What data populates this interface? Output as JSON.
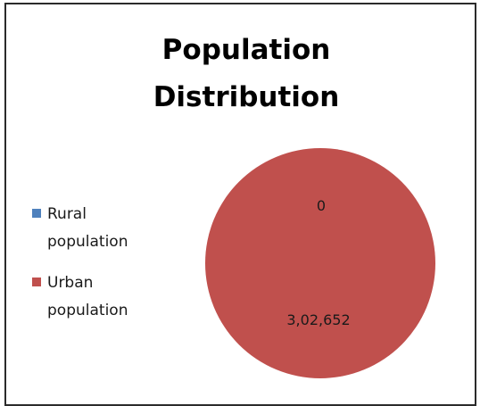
{
  "chart_data": {
    "type": "pie",
    "title_lines": [
      "Population",
      "Distribution"
    ],
    "categories": [
      "Rural population",
      "Urban population"
    ],
    "values": [
      0,
      302652
    ],
    "data_labels": [
      "0",
      "3,02,652"
    ],
    "colors": [
      "#4F81BD",
      "#C0504D"
    ],
    "legend": {
      "position": "left",
      "entries": [
        {
          "label_lines": [
            "Rural",
            "population"
          ],
          "color": "#4F81BD"
        },
        {
          "label_lines": [
            "Urban",
            "population"
          ],
          "color": "#C0504D"
        }
      ]
    }
  }
}
